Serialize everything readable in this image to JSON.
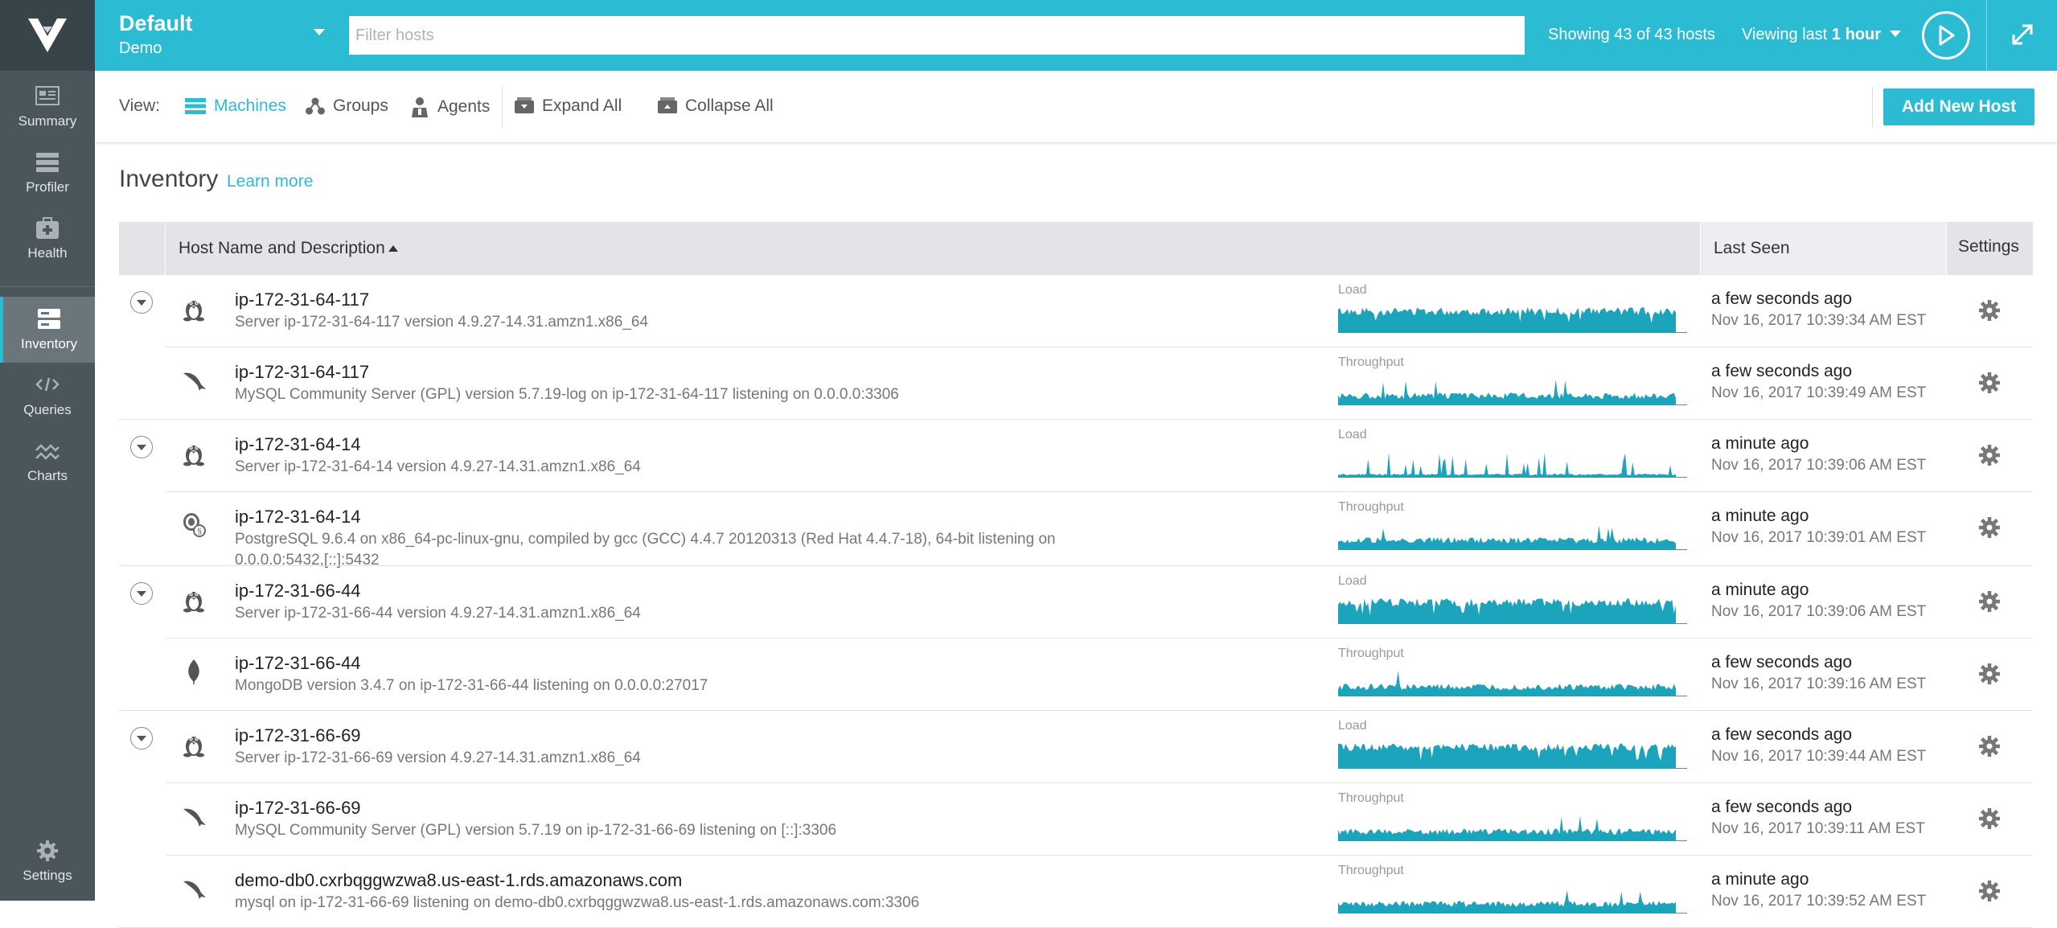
{
  "sidebar": {
    "items": [
      {
        "label": "Summary",
        "icon": "summary-icon"
      },
      {
        "label": "Profiler",
        "icon": "profiler-icon"
      },
      {
        "label": "Health",
        "icon": "health-icon"
      },
      {
        "label": "Inventory",
        "icon": "inventory-icon",
        "active": true
      },
      {
        "label": "Queries",
        "icon": "queries-icon"
      },
      {
        "label": "Charts",
        "icon": "charts-icon"
      }
    ],
    "settings_label": "Settings"
  },
  "topbar": {
    "env_name": "Default",
    "env_sub": "Demo",
    "filter_placeholder": "Filter hosts",
    "showing": "Showing 43 of 43 hosts",
    "viewing_prefix": "Viewing last ",
    "viewing_value": "1 hour"
  },
  "toolbar": {
    "view_label": "View:",
    "machines": "Machines",
    "groups": "Groups",
    "agents": "Agents",
    "expand_all": "Expand All",
    "collapse_all": "Collapse All",
    "add_host": "Add New Host"
  },
  "inventory": {
    "title": "Inventory",
    "learn_more": "Learn more",
    "columns": {
      "host": "Host Name and Description",
      "last_seen": "Last Seen",
      "settings": "Settings"
    },
    "rows": [
      {
        "name": "ip-172-31-64-117",
        "desc": "Server ip-172-31-64-117 version 4.9.27-14.31.amzn1.x86_64",
        "type": "linux",
        "metric": "Load",
        "seen": "a few seconds ago",
        "date": "Nov 16, 2017 10:39:34 AM EST",
        "toggle": true
      },
      {
        "name": "ip-172-31-64-117",
        "desc": "MySQL Community Server (GPL) version 5.7.19-log on ip-172-31-64-117 listening on 0.0.0.0:3306",
        "type": "mysql",
        "metric": "Throughput",
        "seen": "a few seconds ago",
        "date": "Nov 16, 2017 10:39:49 AM EST"
      },
      {
        "name": "ip-172-31-64-14",
        "desc": "Server ip-172-31-64-14 version 4.9.27-14.31.amzn1.x86_64",
        "type": "linux",
        "metric": "Load",
        "seen": "a minute ago",
        "date": "Nov 16, 2017 10:39:06 AM EST",
        "toggle": true
      },
      {
        "name": "ip-172-31-64-14",
        "desc": "PostgreSQL 9.6.4 on x86_64-pc-linux-gnu, compiled by gcc (GCC) 4.4.7 20120313 (Red Hat 4.4.7-18), 64-bit listening on 0.0.0.0:5432,[::]:5432",
        "type": "postgres",
        "metric": "Throughput",
        "seen": "a minute ago",
        "date": "Nov 16, 2017 10:39:01 AM EST"
      },
      {
        "name": "ip-172-31-66-44",
        "desc": "Server ip-172-31-66-44 version 4.9.27-14.31.amzn1.x86_64",
        "type": "linux",
        "metric": "Load",
        "seen": "a minute ago",
        "date": "Nov 16, 2017 10:39:06 AM EST",
        "toggle": true
      },
      {
        "name": "ip-172-31-66-44",
        "desc": "MongoDB version 3.4.7 on ip-172-31-66-44 listening on 0.0.0.0:27017",
        "type": "mongo",
        "metric": "Throughput",
        "seen": "a few seconds ago",
        "date": "Nov 16, 2017 10:39:16 AM EST"
      },
      {
        "name": "ip-172-31-66-69",
        "desc": "Server ip-172-31-66-69 version 4.9.27-14.31.amzn1.x86_64",
        "type": "linux",
        "metric": "Load",
        "seen": "a few seconds ago",
        "date": "Nov 16, 2017 10:39:44 AM EST",
        "toggle": true
      },
      {
        "name": "ip-172-31-66-69",
        "desc": "MySQL Community Server (GPL) version 5.7.19 on ip-172-31-66-69 listening on [::]:3306",
        "type": "mysql",
        "metric": "Throughput",
        "seen": "a few seconds ago",
        "date": "Nov 16, 2017 10:39:11 AM EST"
      },
      {
        "name": "demo-db0.cxrbqggwzwa8.us-east-1.rds.amazonaws.com",
        "desc": "mysql on ip-172-31-66-69 listening on demo-db0.cxrbqggwzwa8.us-east-1.rds.amazonaws.com:3306",
        "type": "mysql",
        "metric": "Throughput",
        "seen": "a minute ago",
        "date": "Nov 16, 2017 10:39:52 AM EST"
      }
    ]
  },
  "colors": {
    "accent": "#2bbcd4",
    "spark": "#1ca4bd",
    "sidebar": "#4a555c"
  }
}
